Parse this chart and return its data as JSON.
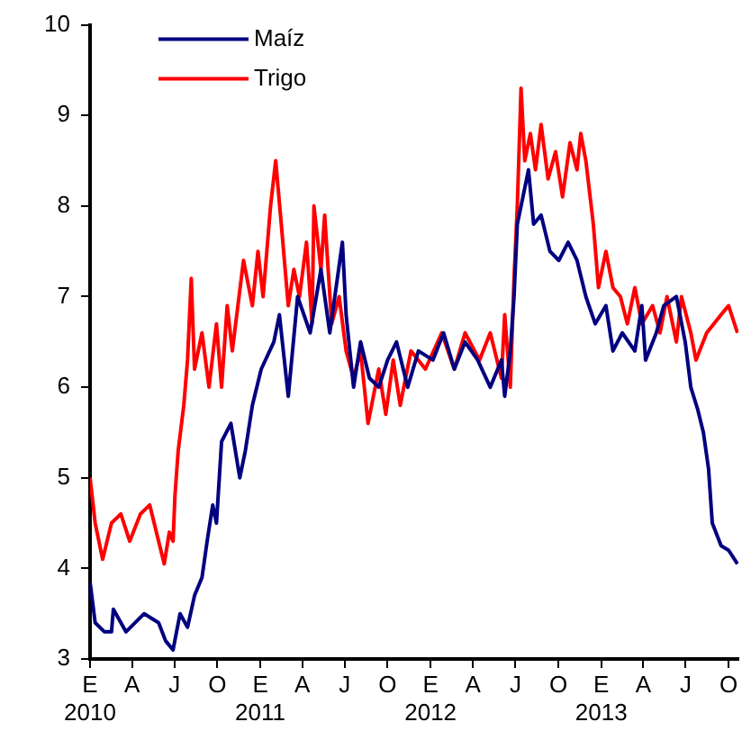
{
  "chart_data": {
    "type": "line",
    "xlim": [
      "2010-01-01",
      "2013-10-22"
    ],
    "ylim": [
      3,
      10
    ],
    "yticks": [
      3,
      4,
      5,
      6,
      7,
      8,
      9,
      10
    ],
    "xticks": [
      {
        "value": "2010-01-01",
        "label": "E\n2010"
      },
      {
        "value": "2010-04-01",
        "label": "A"
      },
      {
        "value": "2010-07-01",
        "label": "J"
      },
      {
        "value": "2010-10-01",
        "label": "O"
      },
      {
        "value": "2011-01-01",
        "label": "E\n2011"
      },
      {
        "value": "2011-04-01",
        "label": "A"
      },
      {
        "value": "2011-07-01",
        "label": "J"
      },
      {
        "value": "2011-10-01",
        "label": "O"
      },
      {
        "value": "2012-01-01",
        "label": "E\n2012"
      },
      {
        "value": "2012-04-01",
        "label": "A"
      },
      {
        "value": "2012-07-01",
        "label": "J"
      },
      {
        "value": "2012-10-01",
        "label": "O"
      },
      {
        "value": "2013-01-01",
        "label": "E\n2013"
      },
      {
        "value": "2013-04-01",
        "label": "A"
      },
      {
        "value": "2013-07-01",
        "label": "J"
      },
      {
        "value": "2013-10-01",
        "label": "O"
      }
    ],
    "grid": false,
    "legend": "top left",
    "marker": "none",
    "line_style": "solid",
    "series": [
      {
        "name": "Maíz",
        "color": "#000080",
        "x": [
          "2010-01-01",
          "2010-01-12",
          "2010-02-01",
          "2010-02-16",
          "2010-02-20",
          "2010-03-19",
          "2010-04-27",
          "2010-05-28",
          "2010-06-12",
          "2010-06-28",
          "2010-07-13",
          "2010-07-29",
          "2010-08-13",
          "2010-08-29",
          "2010-09-09",
          "2010-09-21",
          "2010-09-29",
          "2010-10-10",
          "2010-10-30",
          "2010-11-18",
          "2010-11-30",
          "2010-12-15",
          "2011-01-03",
          "2011-01-30",
          "2011-02-11",
          "2011-03-02",
          "2011-03-22",
          "2011-04-18",
          "2011-05-11",
          "2011-05-30",
          "2011-06-26",
          "2011-07-04",
          "2011-07-20",
          "2011-08-04",
          "2011-08-23",
          "2011-09-12",
          "2011-10-01",
          "2011-10-20",
          "2011-11-13",
          "2011-12-06",
          "2012-01-06",
          "2012-01-29",
          "2012-02-21",
          "2012-03-15",
          "2012-04-11",
          "2012-05-08",
          "2012-06-01",
          "2012-06-08",
          "2012-06-20",
          "2012-06-28",
          "2012-07-05",
          "2012-07-17",
          "2012-07-29",
          "2012-08-09",
          "2012-08-25",
          "2012-09-13",
          "2012-10-02",
          "2012-10-22",
          "2012-11-10",
          "2012-11-29",
          "2012-12-19",
          "2013-01-11",
          "2013-01-26",
          "2013-02-15",
          "2013-03-14",
          "2013-03-29",
          "2013-04-06",
          "2013-04-29",
          "2013-05-15",
          "2013-06-11",
          "2013-06-30",
          "2013-07-12",
          "2013-07-27",
          "2013-08-08",
          "2013-08-19",
          "2013-08-27",
          "2013-09-15",
          "2013-10-01",
          "2013-10-20"
        ],
        "values": [
          3.85,
          3.4,
          3.3,
          3.3,
          3.55,
          3.3,
          3.5,
          3.4,
          3.2,
          3.1,
          3.5,
          3.35,
          3.7,
          3.9,
          4.3,
          4.7,
          4.5,
          5.4,
          5.6,
          5.0,
          5.3,
          5.8,
          6.2,
          6.5,
          6.8,
          5.9,
          7.0,
          6.6,
          7.3,
          6.6,
          7.6,
          6.8,
          6.0,
          6.5,
          6.1,
          6.0,
          6.3,
          6.5,
          6.0,
          6.4,
          6.3,
          6.6,
          6.2,
          6.5,
          6.3,
          6.0,
          6.3,
          5.9,
          6.4,
          7.0,
          7.8,
          8.1,
          8.4,
          7.8,
          7.9,
          7.5,
          7.4,
          7.6,
          7.4,
          7.0,
          6.7,
          6.9,
          6.4,
          6.6,
          6.4,
          6.9,
          6.3,
          6.6,
          6.9,
          7.0,
          6.5,
          6.0,
          5.75,
          5.5,
          5.1,
          4.5,
          4.25,
          4.2,
          4.05
        ]
      },
      {
        "name": "Trigo",
        "color": "#ff0000",
        "x": [
          "2010-01-01",
          "2010-01-12",
          "2010-01-28",
          "2010-02-16",
          "2010-03-08",
          "2010-03-27",
          "2010-04-19",
          "2010-05-09",
          "2010-05-28",
          "2010-06-09",
          "2010-06-20",
          "2010-06-28",
          "2010-07-02",
          "2010-07-09",
          "2010-07-21",
          "2010-07-29",
          "2010-08-06",
          "2010-08-13",
          "2010-08-29",
          "2010-09-13",
          "2010-09-29",
          "2010-10-10",
          "2010-10-22",
          "2010-11-02",
          "2010-11-26",
          "2010-12-15",
          "2010-12-27",
          "2011-01-07",
          "2011-01-23",
          "2011-02-03",
          "2011-02-15",
          "2011-03-02",
          "2011-03-14",
          "2011-03-26",
          "2011-04-10",
          "2011-04-22",
          "2011-04-26",
          "2011-05-11",
          "2011-05-19",
          "2011-06-03",
          "2011-06-19",
          "2011-07-04",
          "2011-07-20",
          "2011-08-04",
          "2011-08-20",
          "2011-09-12",
          "2011-09-27",
          "2011-10-13",
          "2011-10-28",
          "2011-11-20",
          "2011-12-21",
          "2012-01-25",
          "2012-02-21",
          "2012-03-15",
          "2012-04-15",
          "2012-05-08",
          "2012-06-01",
          "2012-06-08",
          "2012-06-20",
          "2012-06-28",
          "2012-07-05",
          "2012-07-13",
          "2012-07-21",
          "2012-08-02",
          "2012-08-13",
          "2012-08-25",
          "2012-09-09",
          "2012-09-25",
          "2012-10-10",
          "2012-10-26",
          "2012-11-10",
          "2012-11-18",
          "2012-11-29",
          "2012-12-15",
          "2012-12-26",
          "2013-01-11",
          "2013-01-26",
          "2013-02-11",
          "2013-02-26",
          "2013-03-14",
          "2013-03-29",
          "2013-04-21",
          "2013-05-07",
          "2013-05-22",
          "2013-06-11",
          "2013-06-22",
          "2013-07-12",
          "2013-07-23",
          "2013-08-15",
          "2013-09-15",
          "2013-10-01",
          "2013-10-20"
        ],
        "values": [
          5.0,
          4.5,
          4.1,
          4.5,
          4.6,
          4.3,
          4.6,
          4.7,
          4.3,
          4.05,
          4.4,
          4.3,
          4.8,
          5.3,
          5.8,
          6.3,
          7.2,
          6.2,
          6.6,
          6.0,
          6.7,
          6.0,
          6.9,
          6.4,
          7.4,
          6.9,
          7.5,
          7.0,
          8.0,
          8.5,
          7.8,
          6.9,
          7.3,
          7.0,
          7.6,
          6.7,
          8.0,
          7.3,
          7.9,
          6.7,
          7.0,
          6.4,
          6.1,
          6.4,
          5.6,
          6.2,
          5.7,
          6.3,
          5.8,
          6.4,
          6.2,
          6.6,
          6.2,
          6.6,
          6.3,
          6.6,
          6.1,
          6.8,
          6.0,
          7.2,
          8.0,
          9.3,
          8.5,
          8.8,
          8.4,
          8.9,
          8.3,
          8.6,
          8.1,
          8.7,
          8.4,
          8.8,
          8.5,
          7.8,
          7.1,
          7.5,
          7.1,
          7.0,
          6.7,
          7.1,
          6.7,
          6.9,
          6.6,
          7.0,
          6.5,
          7.0,
          6.6,
          6.3,
          6.6,
          6.8,
          6.9,
          6.6
        ]
      }
    ]
  }
}
